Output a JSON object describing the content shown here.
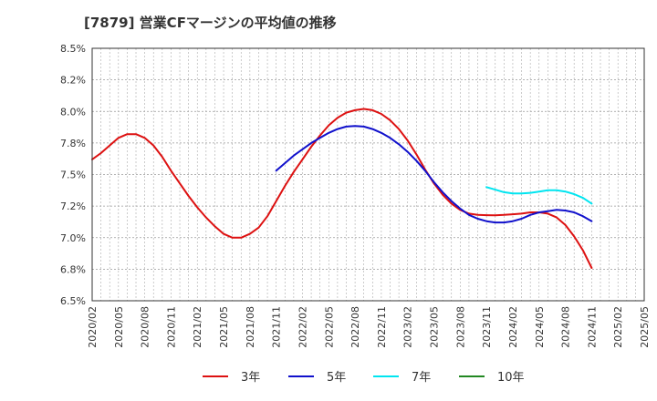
{
  "chart_data": {
    "type": "line",
    "title": "[7879]  営業CFマージンの平均値の推移",
    "xlabel": "",
    "ylabel": "",
    "ylim": [
      6.5,
      8.5
    ],
    "y_ticks": [
      "6.5%",
      "6.8%",
      "7.0%",
      "7.2%",
      "7.5%",
      "7.8%",
      "8.0%",
      "8.2%",
      "8.5%"
    ],
    "x_ticks": [
      "2020/02",
      "2020/05",
      "2020/08",
      "2020/11",
      "2021/02",
      "2021/05",
      "2021/08",
      "2021/11",
      "2022/02",
      "2022/05",
      "2022/08",
      "2022/11",
      "2023/02",
      "2023/05",
      "2023/08",
      "2023/11",
      "2024/02",
      "2024/05",
      "2024/08",
      "2024/11",
      "2025/02",
      "2025/05"
    ],
    "grid": true,
    "legend_position": "bottom",
    "series": [
      {
        "name": "3年",
        "color": "#dd1111",
        "x": [
          "2020/02",
          "2020/03",
          "2020/04",
          "2020/05",
          "2020/06",
          "2020/07",
          "2020/08",
          "2020/09",
          "2020/10",
          "2020/11",
          "2020/12",
          "2021/01",
          "2021/02",
          "2021/03",
          "2021/04",
          "2021/05",
          "2021/06",
          "2021/07",
          "2021/08",
          "2021/09",
          "2021/10",
          "2021/11",
          "2021/12",
          "2022/01",
          "2022/02",
          "2022/03",
          "2022/04",
          "2022/05",
          "2022/06",
          "2022/07",
          "2022/08",
          "2022/09",
          "2022/10",
          "2022/11",
          "2022/12",
          "2023/01",
          "2023/02",
          "2023/03",
          "2023/04",
          "2023/05",
          "2023/06",
          "2023/07",
          "2023/08",
          "2023/09",
          "2023/10",
          "2023/11",
          "2023/12",
          "2024/01",
          "2024/02",
          "2024/03",
          "2024/04",
          "2024/05",
          "2024/06",
          "2024/07",
          "2024/08",
          "2024/09",
          "2024/10",
          "2024/11"
        ],
        "values": [
          7.62,
          7.67,
          7.73,
          7.79,
          7.82,
          7.82,
          7.79,
          7.73,
          7.64,
          7.53,
          7.43,
          7.33,
          7.24,
          7.16,
          7.09,
          7.03,
          7.0,
          7.0,
          7.03,
          7.08,
          7.17,
          7.29,
          7.41,
          7.52,
          7.62,
          7.72,
          7.81,
          7.89,
          7.95,
          7.99,
          8.01,
          8.02,
          8.01,
          7.98,
          7.93,
          7.86,
          7.77,
          7.66,
          7.54,
          7.43,
          7.34,
          7.27,
          7.22,
          7.19,
          7.18,
          7.178,
          7.177,
          7.18,
          7.185,
          7.19,
          7.2,
          7.2,
          7.19,
          7.16,
          7.1,
          7.01,
          6.9,
          6.76
        ]
      },
      {
        "name": "5年",
        "color": "#1111cc",
        "x": [
          "2021/11",
          "2021/12",
          "2022/01",
          "2022/02",
          "2022/03",
          "2022/04",
          "2022/05",
          "2022/06",
          "2022/07",
          "2022/08",
          "2022/09",
          "2022/10",
          "2022/11",
          "2022/12",
          "2023/01",
          "2023/02",
          "2023/03",
          "2023/04",
          "2023/05",
          "2023/06",
          "2023/07",
          "2023/08",
          "2023/09",
          "2023/10",
          "2023/11",
          "2023/12",
          "2024/01",
          "2024/02",
          "2024/03",
          "2024/04",
          "2024/05",
          "2024/06",
          "2024/07",
          "2024/08",
          "2024/09",
          "2024/10",
          "2024/11"
        ],
        "values": [
          7.53,
          7.59,
          7.65,
          7.7,
          7.75,
          7.79,
          7.83,
          7.86,
          7.88,
          7.885,
          7.88,
          7.86,
          7.83,
          7.79,
          7.74,
          7.68,
          7.61,
          7.53,
          7.44,
          7.36,
          7.29,
          7.23,
          7.18,
          7.15,
          7.13,
          7.12,
          7.12,
          7.13,
          7.15,
          7.18,
          7.2,
          7.21,
          7.22,
          7.215,
          7.2,
          7.17,
          7.13
        ]
      },
      {
        "name": "7年",
        "color": "#00e5f0",
        "x": [
          "2023/11",
          "2023/12",
          "2024/01",
          "2024/02",
          "2024/03",
          "2024/04",
          "2024/05",
          "2024/06",
          "2024/07",
          "2024/08",
          "2024/09",
          "2024/10",
          "2024/11"
        ],
        "values": [
          7.4,
          7.38,
          7.36,
          7.35,
          7.35,
          7.355,
          7.365,
          7.375,
          7.375,
          7.365,
          7.345,
          7.315,
          7.27
        ]
      },
      {
        "name": "10年",
        "color": "#228822",
        "x": [],
        "values": []
      }
    ]
  }
}
